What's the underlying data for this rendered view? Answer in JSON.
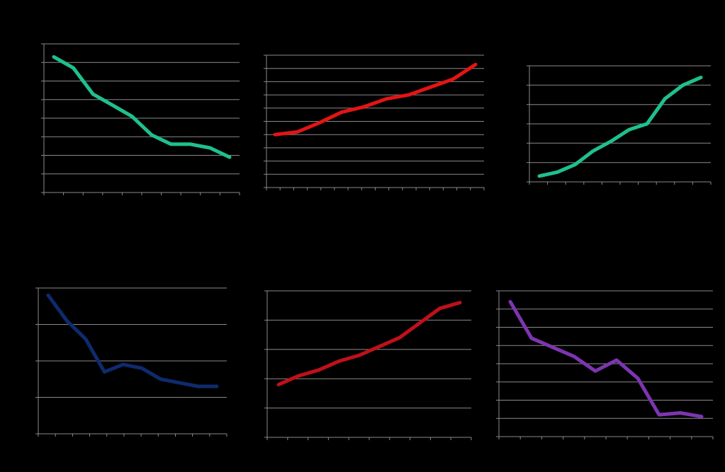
{
  "chart_data": [
    {
      "type": "line",
      "title": "",
      "xlabel": "",
      "ylabel": "",
      "x": [
        1,
        2,
        3,
        4,
        5,
        6,
        7,
        8,
        9,
        10
      ],
      "ylim": [
        0,
        8
      ],
      "y_gridlines": 8,
      "x_ticks": 10,
      "grid": true,
      "series": [
        {
          "values": [
            7.3,
            6.7,
            5.3,
            4.7,
            4.1,
            3.1,
            2.6,
            2.6,
            2.4,
            1.9
          ],
          "color": "#1fc08e"
        }
      ]
    },
    {
      "type": "line",
      "title": "",
      "xlabel": "",
      "ylabel": "",
      "x": [
        1,
        2,
        3,
        4,
        5,
        6,
        7,
        8,
        9,
        10
      ],
      "ylim": [
        0,
        10
      ],
      "y_gridlines": 10,
      "x_ticks": 16,
      "grid": true,
      "series": [
        {
          "values": [
            4.0,
            4.2,
            4.9,
            5.7,
            6.1,
            6.7,
            7.0,
            7.6,
            8.2,
            9.3
          ],
          "color": "#e41414"
        }
      ]
    },
    {
      "type": "line",
      "title": "",
      "xlabel": "",
      "ylabel": "",
      "x": [
        1,
        2,
        3,
        4,
        5,
        6,
        7,
        8,
        9,
        10
      ],
      "ylim": [
        0,
        6
      ],
      "y_gridlines": 6,
      "x_ticks": 10,
      "grid": true,
      "series": [
        {
          "values": [
            0.3,
            0.5,
            0.9,
            1.6,
            2.1,
            2.7,
            3.0,
            4.3,
            5.0,
            5.4
          ],
          "color": "#1fc08e"
        }
      ]
    },
    {
      "type": "line",
      "title": "",
      "xlabel": "",
      "ylabel": "",
      "x": [
        1,
        2,
        3,
        4,
        5,
        6,
        7,
        8,
        9,
        10
      ],
      "ylim": [
        0,
        4
      ],
      "y_gridlines": 4,
      "x_ticks": 11,
      "grid": true,
      "series": [
        {
          "values": [
            3.8,
            3.1,
            2.6,
            1.7,
            1.9,
            1.8,
            1.5,
            1.4,
            1.3,
            1.3
          ],
          "color": "#0f2b6e"
        }
      ]
    },
    {
      "type": "line",
      "title": "",
      "xlabel": "",
      "ylabel": "",
      "x": [
        1,
        2,
        3,
        4,
        5,
        6,
        7,
        8,
        9,
        10
      ],
      "ylim": [
        0,
        5
      ],
      "y_gridlines": 5,
      "x_ticks": 10,
      "grid": true,
      "series": [
        {
          "values": [
            1.8,
            2.1,
            2.3,
            2.6,
            2.8,
            3.1,
            3.4,
            3.9,
            4.4,
            4.6
          ],
          "color": "#c0101a"
        }
      ]
    },
    {
      "type": "line",
      "title": "",
      "xlabel": "",
      "ylabel": "",
      "x": [
        1,
        2,
        3,
        4,
        5,
        6,
        7,
        8,
        9,
        10
      ],
      "ylim": [
        0,
        8
      ],
      "y_gridlines": 8,
      "x_ticks": 10,
      "grid": true,
      "series": [
        {
          "values": [
            7.4,
            5.4,
            4.9,
            4.4,
            3.6,
            4.2,
            3.2,
            1.2,
            1.3,
            1.1
          ],
          "color": "#7d35b0"
        }
      ]
    }
  ]
}
